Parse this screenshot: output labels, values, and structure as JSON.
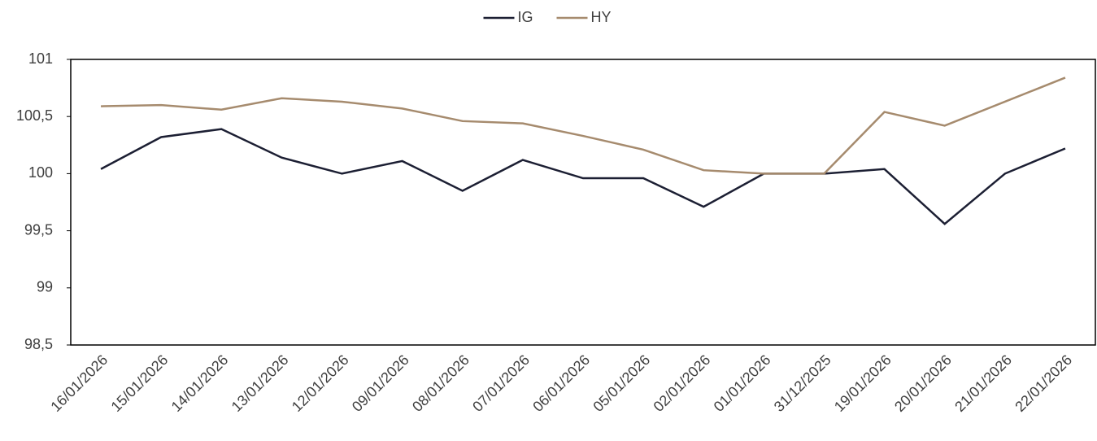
{
  "chart_data": {
    "type": "line",
    "categories": [
      "16/01/2026",
      "15/01/2026",
      "14/01/2026",
      "13/01/2026",
      "12/01/2026",
      "09/01/2026",
      "08/01/2026",
      "07/01/2026",
      "06/01/2026",
      "05/01/2026",
      "02/01/2026",
      "01/01/2026",
      "31/12/2025",
      "19/01/2026",
      "20/01/2026",
      "21/01/2026",
      "22/01/2026"
    ],
    "series": [
      {
        "name": "IG",
        "color": "#1c1f33",
        "values": [
          100.04,
          100.32,
          100.39,
          100.14,
          100,
          100.11,
          99.85,
          100.12,
          99.96,
          99.96,
          99.71,
          100,
          100,
          100.04,
          99.56,
          100,
          100.22
        ]
      },
      {
        "name": "HY",
        "color": "#a68b6e",
        "values": [
          100.59,
          100.6,
          100.56,
          100.66,
          100.63,
          100.57,
          100.46,
          100.44,
          100.33,
          100.21,
          100.03,
          100,
          100,
          100.54,
          100.42,
          100.63,
          100.84
        ]
      }
    ],
    "ylim": [
      98.5,
      101
    ],
    "yticks": [
      {
        "value": 98.5,
        "label": "98,5"
      },
      99,
      {
        "value": 99.5,
        "label": "99,5"
      },
      100,
      {
        "value": 100.5,
        "label": "100,5"
      },
      101
    ],
    "grid": false,
    "legend": "top"
  }
}
